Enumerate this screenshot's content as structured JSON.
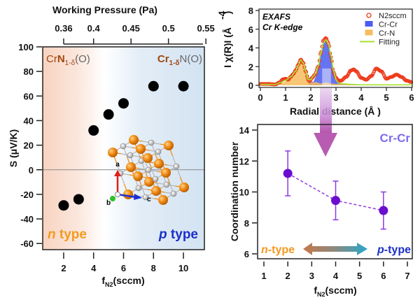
{
  "chart_data": [
    {
      "type": "scatter",
      "id": "seebeck",
      "xlabel_main": "f",
      "xlabel_sub": "N2",
      "xlabel_rest": "(sccm)",
      "ylabel": "S (μV/K)",
      "top_axis_label": "Working Pressure (Pa)",
      "xlim": [
        0.6,
        11.4
      ],
      "ylim": [
        -65,
        100
      ],
      "x_ticks": [
        2,
        4,
        6,
        8,
        10
      ],
      "y_ticks": [
        -60,
        -40,
        -20,
        0,
        20,
        40,
        60,
        80,
        100
      ],
      "top_ticks": [
        {
          "label": "0.36",
          "x": 2.0
        },
        {
          "label": "0.4",
          "x": 4.0
        },
        {
          "label": "0.45",
          "x": 6.5
        },
        {
          "label": "0.5",
          "x": 9.0
        },
        {
          "label": "0.55",
          "x": 11.5
        }
      ],
      "points": [
        {
          "x": 2,
          "y": -29
        },
        {
          "x": 3,
          "y": -24
        },
        {
          "x": 4,
          "y": 32
        },
        {
          "x": 5,
          "y": 45
        },
        {
          "x": 6,
          "y": 54
        },
        {
          "x": 8,
          "y": 68
        },
        {
          "x": 10,
          "y": 68
        }
      ],
      "zero_line": true,
      "annotations": {
        "left_phase": {
          "pre": "Cr",
          "bold": "N",
          "sub": "1-δ",
          "post": "(O)"
        },
        "right_phase": {
          "bold": "Cr",
          "sub": "1-δ",
          "post": "N(O)"
        },
        "n_type": {
          "italic": "n",
          "rest": " type"
        },
        "p_type": {
          "italic": "p",
          "rest": " type"
        }
      },
      "inset": {
        "description": "crystal structure",
        "axes": [
          "a",
          "b",
          "c"
        ]
      },
      "colors": {
        "points": "#000000",
        "n_region": "#f7d6c6",
        "p_region": "#d6e4f2",
        "n_text": "#f39a1f",
        "p_text": "#1c2fc8",
        "phase_brown": "#a0480e",
        "phase_gray": "#666666"
      }
    },
    {
      "type": "line",
      "id": "exafs",
      "title_lines": [
        "EXAFS",
        "Cr K-edge"
      ],
      "xlabel": "Radial distance (Å )",
      "ylabel": "I χ(R)I  (Å⁻⁴)",
      "ylabel_exp": "-4",
      "xlim": [
        0,
        6
      ],
      "ylim": [
        0,
        8
      ],
      "x_ticks": [
        0,
        1,
        2,
        3,
        4,
        5,
        6
      ],
      "y_ticks": [
        0,
        2,
        4,
        6,
        8
      ],
      "legend": [
        {
          "name": "N2sccm",
          "style": "open-circle",
          "color": "#ee3b1d"
        },
        {
          "name": "Cr-Cr",
          "style": "fill",
          "color": "#4a5cf0"
        },
        {
          "name": "Cr-N",
          "style": "fill",
          "color": "#f7bc5c"
        },
        {
          "name": "Fitting",
          "style": "line",
          "color": "#a6e22e"
        }
      ],
      "legend_position": "top-right",
      "series": [
        {
          "name": "N2sccm",
          "x": [
            0,
            0.3,
            0.6,
            0.75,
            0.9,
            1.0,
            1.1,
            1.2,
            1.3,
            1.4,
            1.5,
            1.6,
            1.7,
            1.8,
            1.9,
            1.95,
            2.05,
            2.15,
            2.3,
            2.4,
            2.5,
            2.6,
            2.7,
            2.8,
            2.9,
            3.0,
            3.1,
            3.2,
            3.4,
            3.6,
            3.7,
            3.8,
            4.0,
            4.2,
            4.4,
            4.6,
            4.8,
            5.0,
            5.2,
            5.4,
            5.6,
            5.8,
            6.0
          ],
          "y": [
            0.15,
            0.15,
            0.1,
            0.3,
            0.65,
            0.7,
            0.6,
            0.9,
            1.2,
            1.6,
            2.2,
            2.75,
            2.4,
            1.5,
            0.6,
            0.4,
            0.8,
            1.1,
            2.0,
            3.5,
            4.8,
            5.05,
            4.5,
            3.0,
            1.4,
            0.8,
            0.5,
            0.5,
            0.9,
            1.6,
            1.7,
            1.5,
            0.8,
            0.6,
            1.0,
            1.8,
            1.5,
            0.7,
            0.9,
            1.15,
            0.9,
            0.5,
            0.35
          ]
        },
        {
          "name": "Cr-Cr",
          "x": [
            1.9,
            2.1,
            2.2,
            2.3,
            2.4,
            2.5,
            2.6,
            2.7,
            2.8,
            2.9,
            3.0,
            3.1,
            3.3,
            3.6,
            4.0,
            6.0
          ],
          "y": [
            0.1,
            0.4,
            0.9,
            2.0,
            3.4,
            4.5,
            4.85,
            4.4,
            3.2,
            1.6,
            0.6,
            0.25,
            0.2,
            0.15,
            0.1,
            0.05
          ]
        },
        {
          "name": "Cr-N",
          "x": [
            0.7,
            0.9,
            1.1,
            1.3,
            1.5,
            1.6,
            1.7,
            1.8,
            1.9,
            2.0,
            2.2,
            2.4,
            2.6,
            2.8,
            3.0,
            3.5,
            4.0
          ],
          "y": [
            0.0,
            0.3,
            0.6,
            1.1,
            2.0,
            2.7,
            2.4,
            1.5,
            0.6,
            0.3,
            0.35,
            0.2,
            0.3,
            0.2,
            0.15,
            0.1,
            0.05
          ]
        },
        {
          "name": "Fitting",
          "x": [
            0,
            0.6,
            0.8,
            1.0,
            1.2,
            1.4,
            1.5,
            1.6,
            1.7,
            1.8,
            1.9,
            2.0,
            2.1,
            2.2,
            2.3,
            2.4,
            2.5,
            2.6,
            2.7,
            2.8,
            2.9,
            3.0,
            3.1,
            3.3,
            3.6,
            4.0,
            5.0,
            6.0
          ],
          "y": [
            0.1,
            0.1,
            0.3,
            0.55,
            0.9,
            1.5,
            2.1,
            2.7,
            2.4,
            1.5,
            0.6,
            0.6,
            1.0,
            1.3,
            2.1,
            3.4,
            4.5,
            4.85,
            4.4,
            3.2,
            1.6,
            0.6,
            0.25,
            0.15,
            0.1,
            0.05,
            0.05,
            0.05
          ]
        }
      ],
      "highlight_band": {
        "x": [
          2.45,
          2.8
        ],
        "color": "#c9a3d8"
      }
    },
    {
      "type": "scatter",
      "id": "coordination",
      "label_overlay": "Cr-Cr",
      "xlabel_main": "f",
      "xlabel_sub": "N2",
      "xlabel_rest": "(sccm)",
      "ylabel": "Coordination number",
      "xlim": [
        0.75,
        7.2
      ],
      "ylim": [
        5.8,
        14.2
      ],
      "x_ticks": [
        1,
        2,
        3,
        4,
        5,
        6,
        7
      ],
      "y_ticks": [
        6,
        8,
        10,
        12,
        14
      ],
      "points": [
        {
          "x": 2,
          "y": 11.2,
          "err_low": 9.75,
          "err_high": 12.65
        },
        {
          "x": 4,
          "y": 9.45,
          "err_low": 8.2,
          "err_high": 10.7
        },
        {
          "x": 6,
          "y": 8.8,
          "err_low": 7.6,
          "err_high": 10.0
        }
      ],
      "annotations": {
        "n_type": {
          "italic": "n",
          "rest": "-type"
        },
        "p_type": {
          "italic": "p",
          "rest": "-type"
        }
      },
      "colors": {
        "points": "#6a0dcf",
        "line": "#8a3be0",
        "label": "#7a6cf0",
        "arrow_left": "#c07a4a",
        "arrow_right": "#2aa6c8",
        "n_text": "#f39a1f",
        "p_text": "#1c2fc8"
      }
    }
  ]
}
